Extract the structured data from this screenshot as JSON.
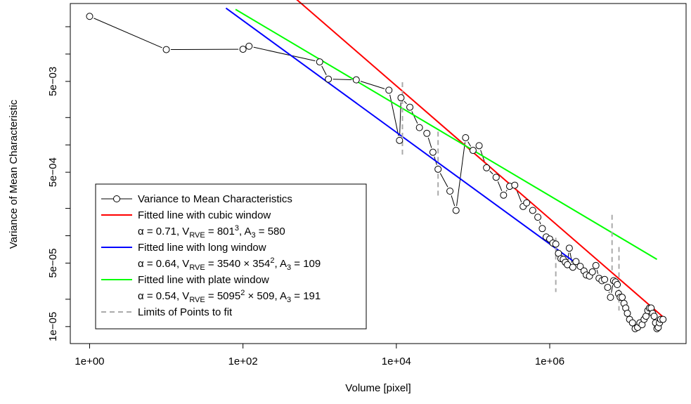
{
  "chart_data": {
    "type": "scatter",
    "xlabel": "Volume [pixel]",
    "ylabel": "Variance of Mean Characteristic",
    "x_scale": "log",
    "y_scale": "log",
    "xlim": [
      0.56,
      60000000
    ],
    "ylim": [
      6.5e-06,
      0.036
    ],
    "x_ticks": [
      1,
      100,
      10000,
      1000000
    ],
    "x_tick_labels": [
      "1e+00",
      "1e+02",
      "1e+04",
      "1e+06"
    ],
    "y_ticks": [
      1e-05,
      5e-05,
      0.0005,
      0.005
    ],
    "y_tick_labels": [
      "1e−05",
      "5e−05",
      "5e−04",
      "5e−03"
    ],
    "y_minor_ticks": [
      2e-05,
      0.0001,
      0.0002,
      0.001,
      0.002,
      0.01,
      0.02
    ],
    "grid": false,
    "colors": {
      "points": "#000000",
      "cubic": "#ff0000",
      "long": "#0000ff",
      "plate": "#00ff00",
      "limits": "#aaaaaa"
    },
    "series": [
      {
        "name": "Variance to Mean Characteristics",
        "kind": "points",
        "x": [
          1,
          10,
          100,
          120,
          1000,
          1300,
          3000,
          8000,
          11000,
          11500,
          15000,
          20000,
          25000,
          30000,
          35000,
          50000,
          60000,
          80000,
          100000,
          120000,
          150000,
          200000,
          250000,
          300000,
          350000,
          450000,
          500000,
          600000,
          700000,
          800000,
          900000,
          1000000,
          1100000,
          1200000,
          1300000,
          1400000,
          1500000,
          1600000,
          1700000,
          1800000,
          2000000,
          2200000,
          2500000,
          2800000,
          3000000,
          3300000,
          3600000,
          4000000,
          4400000,
          4800000,
          5200000,
          5700000,
          6200000,
          6800000,
          7200000,
          7600000,
          7900000,
          8300000,
          8800000,
          9300000,
          9800000,
          10300000,
          11000000,
          12000000,
          13000000,
          14000000,
          15000000,
          16000000,
          17000000,
          18000000,
          19000000,
          20000000,
          21000000,
          22000000,
          23000000,
          24000000,
          25000000,
          26000000,
          27000000,
          28000000,
          30000000
        ],
        "y": [
          0.026,
          0.0112,
          0.0113,
          0.0122,
          0.0082,
          0.0053,
          0.0052,
          0.004,
          0.00112,
          0.0033,
          0.0026,
          0.00155,
          0.00134,
          0.00083,
          0.00054,
          0.00031,
          0.00019,
          0.0012,
          0.00087,
          0.00098,
          0.00056,
          0.00044,
          0.00028,
          0.00035,
          0.00036,
          0.00021,
          0.00023,
          0.00019,
          0.00016,
          0.00012,
          9.7e-05,
          9.2e-05,
          8.3e-05,
          8.1e-05,
          6.4e-05,
          5.6e-05,
          5.5e-05,
          5.1e-05,
          4.8e-05,
          7.3e-05,
          4.5e-05,
          5.2e-05,
          4.6e-05,
          4.1e-05,
          3.7e-05,
          3.6e-05,
          4e-05,
          4.7e-05,
          3.4e-05,
          3.2e-05,
          3.3e-05,
          2.7e-05,
          2.1e-05,
          3.2e-05,
          3.1e-05,
          2.9e-05,
          2.3e-05,
          2.1e-05,
          2.1e-05,
          1.8e-05,
          1.6e-05,
          1.4e-05,
          1.2e-05,
          1.1e-05,
          9.5e-06,
          9.8e-06,
          1.1e-05,
          1.05e-05,
          1.2e-05,
          1.3e-05,
          1.5e-05,
          1.6e-05,
          1.6e-05,
          1.4e-05,
          1.3e-05,
          1.1e-05,
          9.5e-06,
          9.8e-06,
          1.1e-05,
          1.2e-05,
          1.2e-05
        ]
      },
      {
        "name": "Fitted line with cubic window",
        "kind": "line",
        "annotation": "α = 0.71, V_RVE = 801^3, A_3 = 580",
        "x": [
          300,
          30000000
        ],
        "y": [
          0.058,
          1.28e-05
        ]
      },
      {
        "name": "Fitted line with long window",
        "kind": "line",
        "annotation": "α = 0.64, V_RVE = 3540 × 354^2, A_3 = 109",
        "x": [
          60,
          2000000
        ],
        "y": [
          0.032,
          5.3e-05
        ]
      },
      {
        "name": "Fitted line with plate window",
        "kind": "line",
        "annotation": "α = 0.54, V_RVE = 5095^2 × 509, A_3 = 191",
        "x": [
          80,
          25000000
        ],
        "y": [
          0.031,
          5.5e-05
        ]
      },
      {
        "name": "Limits of Points to fit",
        "kind": "vlines",
        "x": [
          12000,
          35000,
          1200000,
          6500000,
          8000000
        ],
        "y_ranges": [
          [
            0.00078,
            0.0049
          ],
          [
            0.00026,
            0.0014
          ],
          [
            2.4e-05,
            9.5e-05
          ],
          [
            4e-05,
            0.00017
          ],
          [
            1.5e-05,
            7.5e-05
          ]
        ]
      }
    ],
    "legend": {
      "placement": "bottom-left",
      "entries": [
        {
          "label": "Variance to Mean Characteristics",
          "symbol": "point-line",
          "color": "#000000"
        },
        {
          "label": "Fitted line with cubic window",
          "symbol": "line",
          "color": "#ff0000"
        },
        {
          "label": "",
          "sub": {
            "alpha": "α = 0.71, V",
            "sub_text": "RVE",
            "rest": " = 801",
            "sup": "3",
            "tail": ", A",
            "tail_sub": "3",
            "end": " = 580"
          }
        },
        {
          "label": "Fitted line with long window",
          "symbol": "line",
          "color": "#0000ff"
        },
        {
          "label": "",
          "sub": {
            "alpha": "α = 0.64, V",
            "sub_text": "RVE",
            "rest": " = 3540 × 354",
            "sup": "2",
            "tail": ", A",
            "tail_sub": "3",
            "end": " = 109"
          }
        },
        {
          "label": "Fitted line with plate window",
          "symbol": "line",
          "color": "#00ff00"
        },
        {
          "label": "",
          "sub": {
            "alpha": "α = 0.54, V",
            "sub_text": "RVE",
            "rest": " = 5095",
            "sup": "2",
            "tail": " × 509, A",
            "tail_sub": "3",
            "end": " = 191"
          }
        },
        {
          "label": "Limits of Points to fit",
          "symbol": "dashed",
          "color": "#aaaaaa"
        }
      ]
    }
  }
}
